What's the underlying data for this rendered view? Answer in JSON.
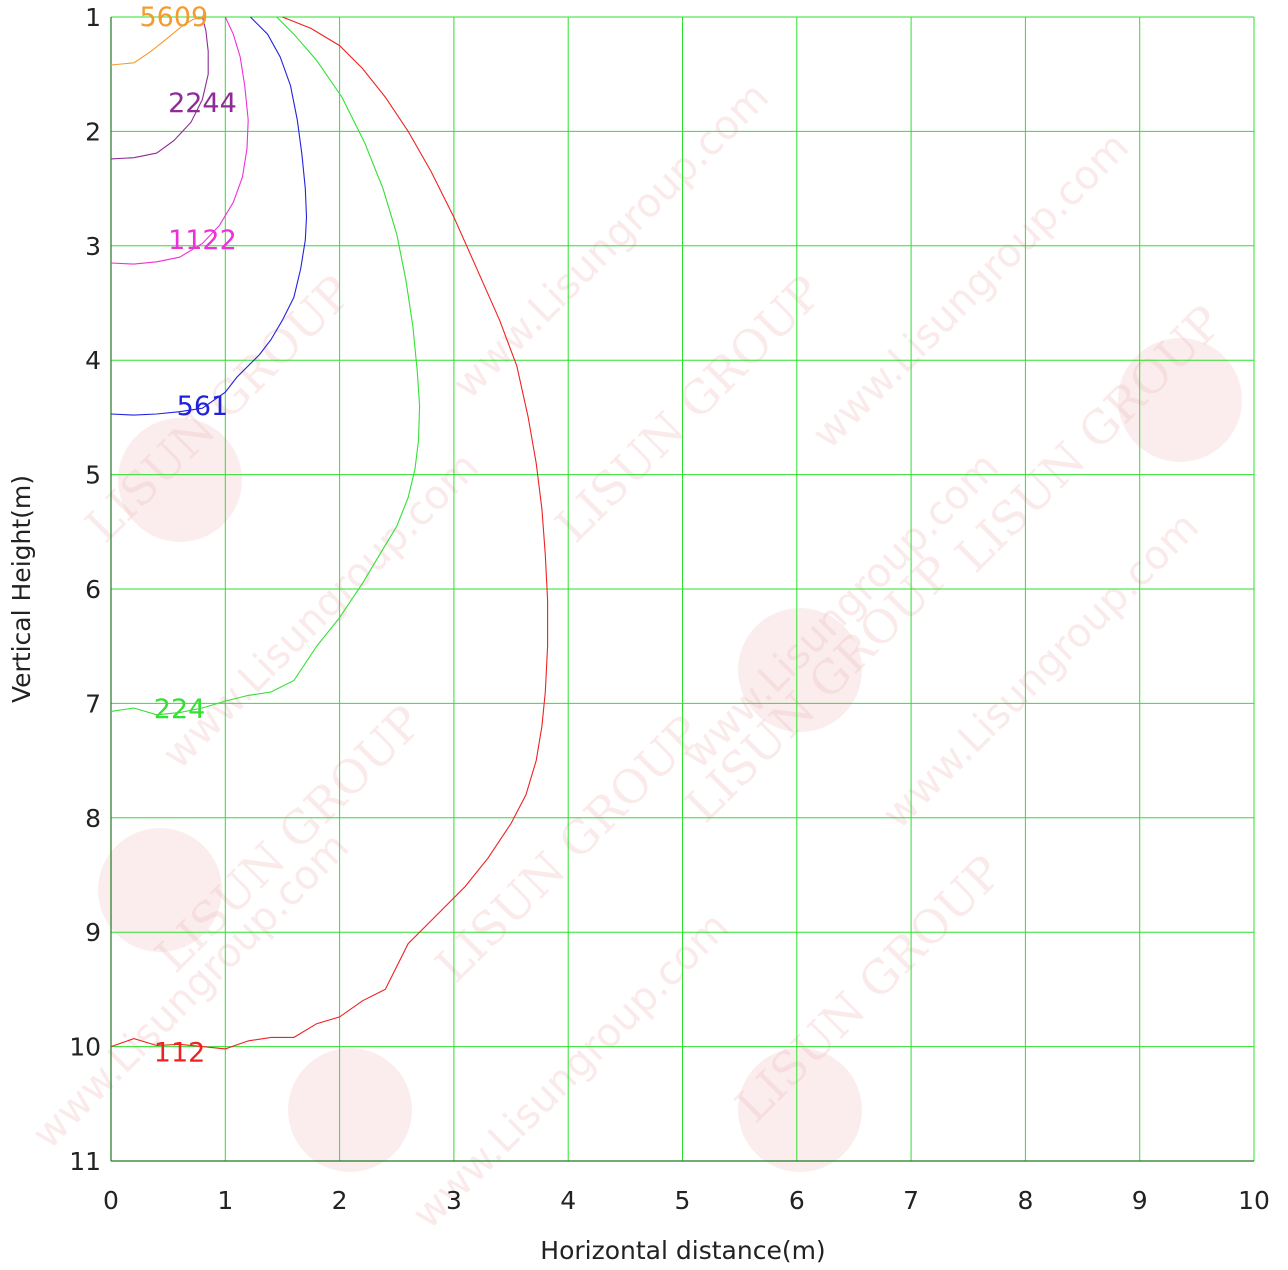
{
  "chart_data": {
    "type": "line",
    "xlabel": "Horizontal distance(m)",
    "ylabel": "Vertical Height(m)",
    "xlim": [
      0,
      10
    ],
    "ylim": [
      1,
      11
    ],
    "y_inverted": true,
    "grid": true,
    "x_ticks": [
      "0",
      "1",
      "2",
      "3",
      "4",
      "5",
      "6",
      "7",
      "8",
      "9",
      "10"
    ],
    "y_ticks": [
      "1",
      "2",
      "3",
      "4",
      "5",
      "6",
      "7",
      "8",
      "9",
      "10",
      "11"
    ],
    "colors": {
      "grid": "#2ee02e",
      "axis": "#1f7a1f",
      "watermark": "#f2c4c4"
    },
    "watermark": {
      "brand": "LISUN GROUP",
      "url": "www.Lisungroup.com"
    },
    "series": [
      {
        "name": "5609",
        "color": "#f59a2e",
        "label_at": [
          0.55,
          1.0
        ],
        "x": [
          0.0,
          0.2,
          0.35,
          0.5,
          0.62,
          0.72,
          0.8
        ],
        "y": [
          1.42,
          1.4,
          1.3,
          1.18,
          1.08,
          1.02,
          1.0
        ]
      },
      {
        "name": "2244",
        "color": "#8e2b96",
        "label_at": [
          0.8,
          1.75
        ],
        "x": [
          0.0,
          0.2,
          0.4,
          0.55,
          0.7,
          0.8,
          0.85,
          0.85,
          0.83,
          0.8
        ],
        "y": [
          2.24,
          2.23,
          2.19,
          2.08,
          1.92,
          1.72,
          1.5,
          1.3,
          1.12,
          1.0
        ]
      },
      {
        "name": "1122",
        "color": "#ef2fd8",
        "label_at": [
          0.8,
          2.95
        ],
        "x": [
          0.0,
          0.2,
          0.4,
          0.6,
          0.8,
          0.95,
          1.07,
          1.15,
          1.19,
          1.2,
          1.17,
          1.13,
          1.07,
          1.0
        ],
        "y": [
          3.15,
          3.16,
          3.14,
          3.1,
          2.98,
          2.82,
          2.62,
          2.4,
          2.15,
          1.9,
          1.6,
          1.35,
          1.15,
          1.0
        ]
      },
      {
        "name": "561",
        "color": "#2222dd",
        "label_at": [
          0.8,
          4.4
        ],
        "x": [
          0.0,
          0.2,
          0.4,
          0.6,
          0.8,
          1.0,
          1.1,
          1.2,
          1.3,
          1.4,
          1.5,
          1.6,
          1.66,
          1.7,
          1.71,
          1.7,
          1.67,
          1.63,
          1.57,
          1.48,
          1.37,
          1.22
        ],
        "y": [
          4.47,
          4.48,
          4.47,
          4.45,
          4.42,
          4.28,
          4.15,
          4.05,
          3.95,
          3.82,
          3.65,
          3.45,
          3.2,
          2.95,
          2.75,
          2.5,
          2.2,
          1.9,
          1.6,
          1.35,
          1.15,
          1.0
        ]
      },
      {
        "name": "224",
        "color": "#33e033",
        "label_at": [
          0.6,
          7.05
        ],
        "x": [
          0.0,
          0.2,
          0.4,
          0.6,
          0.8,
          1.0,
          1.2,
          1.4,
          1.6,
          1.8,
          2.0,
          2.2,
          2.35,
          2.5,
          2.6,
          2.66,
          2.69,
          2.7,
          2.68,
          2.64,
          2.58,
          2.5,
          2.38,
          2.22,
          2.02,
          1.8,
          1.6,
          1.45
        ],
        "y": [
          7.07,
          7.04,
          7.1,
          7.08,
          7.04,
          6.98,
          6.93,
          6.9,
          6.8,
          6.5,
          6.25,
          5.95,
          5.7,
          5.45,
          5.2,
          4.95,
          4.7,
          4.4,
          4.1,
          3.7,
          3.3,
          2.9,
          2.5,
          2.1,
          1.7,
          1.38,
          1.15,
          1.0
        ]
      },
      {
        "name": "112",
        "color": "#ee2222",
        "label_at": [
          0.6,
          10.05
        ],
        "x": [
          0.0,
          0.2,
          0.4,
          0.6,
          0.8,
          1.0,
          1.2,
          1.4,
          1.6,
          1.8,
          2.0,
          2.2,
          2.4,
          2.6,
          2.85,
          3.1,
          3.3,
          3.5,
          3.63,
          3.72,
          3.77,
          3.8,
          3.82,
          3.82,
          3.8,
          3.77,
          3.72,
          3.65,
          3.55,
          3.4,
          3.2,
          3.0,
          2.8,
          2.6,
          2.4,
          2.2,
          2.0,
          1.75,
          1.5
        ],
        "y": [
          10.0,
          9.93,
          9.99,
          9.98,
          10.0,
          10.02,
          9.95,
          9.92,
          9.92,
          9.8,
          9.74,
          9.6,
          9.5,
          9.1,
          8.85,
          8.6,
          8.35,
          8.05,
          7.8,
          7.5,
          7.2,
          6.9,
          6.5,
          6.1,
          5.7,
          5.3,
          4.9,
          4.5,
          4.05,
          3.65,
          3.2,
          2.75,
          2.35,
          2.0,
          1.7,
          1.45,
          1.25,
          1.1,
          1.0
        ]
      }
    ]
  }
}
